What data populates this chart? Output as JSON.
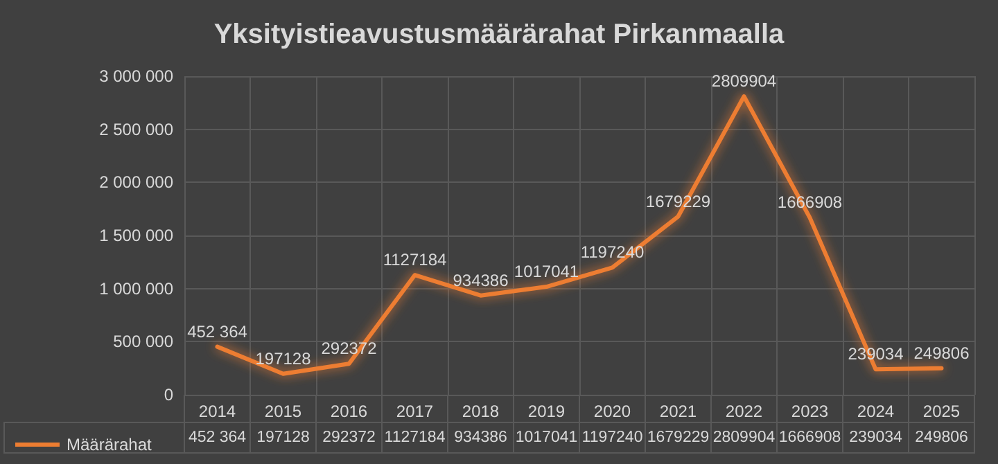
{
  "chart_data": {
    "type": "line",
    "title": "Yksityistieavustusmäärärahat Pirkanmaalla",
    "categories": [
      "2014",
      "2015",
      "2016",
      "2017",
      "2018",
      "2019",
      "2020",
      "2021",
      "2022",
      "2023",
      "2024",
      "2025"
    ],
    "series": [
      {
        "name": "Määrärahat",
        "color": "#ed7d31",
        "values": [
          452364,
          197128,
          292372,
          1127184,
          934386,
          1017041,
          1197240,
          1679229,
          2809904,
          1666908,
          239034,
          249806
        ],
        "value_labels": [
          "452 364",
          "197128",
          "292372",
          "1127184",
          "934386",
          "1017041",
          "1197240",
          "1679229",
          "2809904",
          "1666908",
          "239034",
          "249806"
        ]
      }
    ],
    "ylim": [
      0,
      3000000
    ],
    "yticks": [
      {
        "value": 0,
        "label": "0"
      },
      {
        "value": 500000,
        "label": "500 000"
      },
      {
        "value": 1000000,
        "label": "1 000 000"
      },
      {
        "value": 1500000,
        "label": "1 500 000"
      },
      {
        "value": 2000000,
        "label": "2 000 000"
      },
      {
        "value": 2500000,
        "label": "2 500 000"
      },
      {
        "value": 3000000,
        "label": "3 000 000"
      }
    ],
    "grid": true,
    "legend": "bottom left",
    "marker": "none",
    "line_style": "solid"
  }
}
